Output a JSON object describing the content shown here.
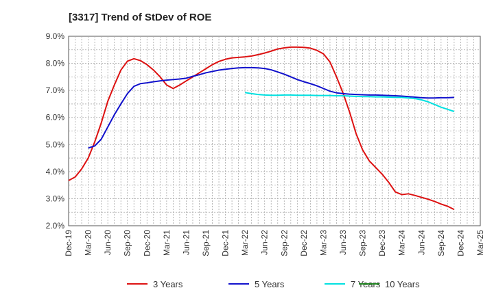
{
  "chart_data": {
    "type": "line",
    "title": "[3317]  Trend of StDev of ROE",
    "x_tick_labels": [
      "Dec-19",
      "Mar-20",
      "Jun-20",
      "Sep-20",
      "Dec-20",
      "Mar-21",
      "Jun-21",
      "Sep-21",
      "Dec-21",
      "Mar-22",
      "Jun-22",
      "Sep-22",
      "Dec-22",
      "Mar-23",
      "Jun-23",
      "Sep-23",
      "Dec-23",
      "Mar-24",
      "Jun-24",
      "Sep-24",
      "Dec-24",
      "Mar-25"
    ],
    "y_tick_labels": [
      "9.0%",
      "8.0%",
      "7.0%",
      "6.0%",
      "5.0%",
      "4.0%",
      "3.0%",
      "2.0%"
    ],
    "ylim": [
      2.0,
      9.0
    ],
    "y_ticks": [
      9.0,
      8.0,
      7.0,
      6.0,
      5.0,
      4.0,
      3.0,
      2.0
    ],
    "grid": true,
    "legend_position": "bottom",
    "series": [
      {
        "name": "3 Years",
        "color": "#dd1111",
        "points": [
          [
            "Dec-19",
            3.67
          ],
          [
            "Jan-20",
            3.8
          ],
          [
            "Feb-20",
            4.1
          ],
          [
            "Mar-20",
            4.5
          ],
          [
            "Apr-20",
            5.1
          ],
          [
            "May-20",
            5.8
          ],
          [
            "Jun-20",
            6.6
          ],
          [
            "Jul-20",
            7.2
          ],
          [
            "Aug-20",
            7.75
          ],
          [
            "Sep-20",
            8.08
          ],
          [
            "Oct-20",
            8.17
          ],
          [
            "Nov-20",
            8.1
          ],
          [
            "Dec-20",
            7.95
          ],
          [
            "Jan-21",
            7.75
          ],
          [
            "Feb-21",
            7.5
          ],
          [
            "Mar-21",
            7.2
          ],
          [
            "Apr-21",
            7.07
          ],
          [
            "May-21",
            7.2
          ],
          [
            "Jun-21",
            7.35
          ],
          [
            "Jul-21",
            7.5
          ],
          [
            "Aug-21",
            7.65
          ],
          [
            "Sep-21",
            7.8
          ],
          [
            "Oct-21",
            7.95
          ],
          [
            "Nov-21",
            8.07
          ],
          [
            "Dec-21",
            8.15
          ],
          [
            "Jan-22",
            8.2
          ],
          [
            "Feb-22",
            8.22
          ],
          [
            "Mar-22",
            8.24
          ],
          [
            "Apr-22",
            8.27
          ],
          [
            "May-22",
            8.32
          ],
          [
            "Jun-22",
            8.38
          ],
          [
            "Jul-22",
            8.45
          ],
          [
            "Aug-22",
            8.53
          ],
          [
            "Sep-22",
            8.57
          ],
          [
            "Oct-22",
            8.6
          ],
          [
            "Nov-22",
            8.6
          ],
          [
            "Dec-22",
            8.59
          ],
          [
            "Jan-23",
            8.56
          ],
          [
            "Feb-23",
            8.48
          ],
          [
            "Mar-23",
            8.35
          ],
          [
            "Apr-23",
            8.05
          ],
          [
            "May-23",
            7.5
          ],
          [
            "Jun-23",
            6.9
          ],
          [
            "Jul-23",
            6.2
          ],
          [
            "Aug-23",
            5.4
          ],
          [
            "Sep-23",
            4.8
          ],
          [
            "Oct-23",
            4.4
          ],
          [
            "Nov-23",
            4.15
          ],
          [
            "Dec-23",
            3.9
          ],
          [
            "Jan-24",
            3.6
          ],
          [
            "Feb-24",
            3.25
          ],
          [
            "Mar-24",
            3.15
          ],
          [
            "Apr-24",
            3.18
          ],
          [
            "May-24",
            3.12
          ],
          [
            "Jun-24",
            3.05
          ],
          [
            "Jul-24",
            2.98
          ],
          [
            "Aug-24",
            2.9
          ],
          [
            "Sep-24",
            2.8
          ],
          [
            "Oct-24",
            2.72
          ],
          [
            "Nov-24",
            2.6
          ]
        ]
      },
      {
        "name": "5 Years",
        "color": "#1111cc",
        "points": [
          [
            "Mar-20",
            4.87
          ],
          [
            "Apr-20",
            4.95
          ],
          [
            "May-20",
            5.2
          ],
          [
            "Jun-20",
            5.65
          ],
          [
            "Jul-20",
            6.1
          ],
          [
            "Aug-20",
            6.5
          ],
          [
            "Sep-20",
            6.88
          ],
          [
            "Oct-20",
            7.15
          ],
          [
            "Nov-20",
            7.25
          ],
          [
            "Dec-20",
            7.28
          ],
          [
            "Jan-21",
            7.32
          ],
          [
            "Feb-21",
            7.35
          ],
          [
            "Mar-21",
            7.38
          ],
          [
            "Apr-21",
            7.4
          ],
          [
            "May-21",
            7.42
          ],
          [
            "Jun-21",
            7.45
          ],
          [
            "Jul-21",
            7.52
          ],
          [
            "Aug-21",
            7.58
          ],
          [
            "Sep-21",
            7.65
          ],
          [
            "Oct-21",
            7.7
          ],
          [
            "Nov-21",
            7.75
          ],
          [
            "Dec-21",
            7.78
          ],
          [
            "Jan-22",
            7.81
          ],
          [
            "Feb-22",
            7.83
          ],
          [
            "Mar-22",
            7.84
          ],
          [
            "Apr-22",
            7.84
          ],
          [
            "May-22",
            7.83
          ],
          [
            "Jun-22",
            7.81
          ],
          [
            "Jul-22",
            7.76
          ],
          [
            "Aug-22",
            7.68
          ],
          [
            "Sep-22",
            7.6
          ],
          [
            "Oct-22",
            7.5
          ],
          [
            "Nov-22",
            7.4
          ],
          [
            "Dec-22",
            7.32
          ],
          [
            "Jan-23",
            7.25
          ],
          [
            "Feb-23",
            7.17
          ],
          [
            "Mar-23",
            7.07
          ],
          [
            "Apr-23",
            6.97
          ],
          [
            "May-23",
            6.91
          ],
          [
            "Jun-23",
            6.88
          ],
          [
            "Jul-23",
            6.86
          ],
          [
            "Aug-23",
            6.85
          ],
          [
            "Sep-23",
            6.84
          ],
          [
            "Oct-23",
            6.83
          ],
          [
            "Nov-23",
            6.83
          ],
          [
            "Dec-23",
            6.82
          ],
          [
            "Jan-24",
            6.81
          ],
          [
            "Feb-24",
            6.8
          ],
          [
            "Mar-24",
            6.79
          ],
          [
            "Apr-24",
            6.77
          ],
          [
            "May-24",
            6.75
          ],
          [
            "Jun-24",
            6.73
          ],
          [
            "Jul-24",
            6.72
          ],
          [
            "Aug-24",
            6.72
          ],
          [
            "Sep-24",
            6.73
          ],
          [
            "Oct-24",
            6.73
          ],
          [
            "Nov-24",
            6.74
          ]
        ]
      },
      {
        "name": "7 Years",
        "color": "#00e0e0",
        "points": [
          [
            "Mar-22",
            6.92
          ],
          [
            "Apr-22",
            6.88
          ],
          [
            "May-22",
            6.85
          ],
          [
            "Jun-22",
            6.83
          ],
          [
            "Jul-22",
            6.82
          ],
          [
            "Aug-22",
            6.82
          ],
          [
            "Sep-22",
            6.83
          ],
          [
            "Oct-22",
            6.83
          ],
          [
            "Nov-22",
            6.82
          ],
          [
            "Dec-22",
            6.82
          ],
          [
            "Jan-23",
            6.82
          ],
          [
            "Feb-23",
            6.81
          ],
          [
            "Mar-23",
            6.81
          ],
          [
            "Apr-23",
            6.81
          ],
          [
            "May-23",
            6.8
          ],
          [
            "Jun-23",
            6.8
          ],
          [
            "Jul-23",
            6.79
          ],
          [
            "Aug-23",
            6.78
          ],
          [
            "Sep-23",
            6.77
          ],
          [
            "Oct-23",
            6.77
          ],
          [
            "Nov-23",
            6.76
          ],
          [
            "Dec-23",
            6.76
          ],
          [
            "Jan-24",
            6.75
          ],
          [
            "Feb-24",
            6.74
          ],
          [
            "Mar-24",
            6.74
          ],
          [
            "Apr-24",
            6.72
          ],
          [
            "May-24",
            6.7
          ],
          [
            "Jun-24",
            6.65
          ],
          [
            "Jul-24",
            6.58
          ],
          [
            "Aug-24",
            6.48
          ],
          [
            "Sep-24",
            6.38
          ],
          [
            "Oct-24",
            6.3
          ],
          [
            "Nov-24",
            6.22
          ]
        ]
      },
      {
        "name": "10 Years",
        "color": "#228822",
        "points": []
      }
    ]
  }
}
